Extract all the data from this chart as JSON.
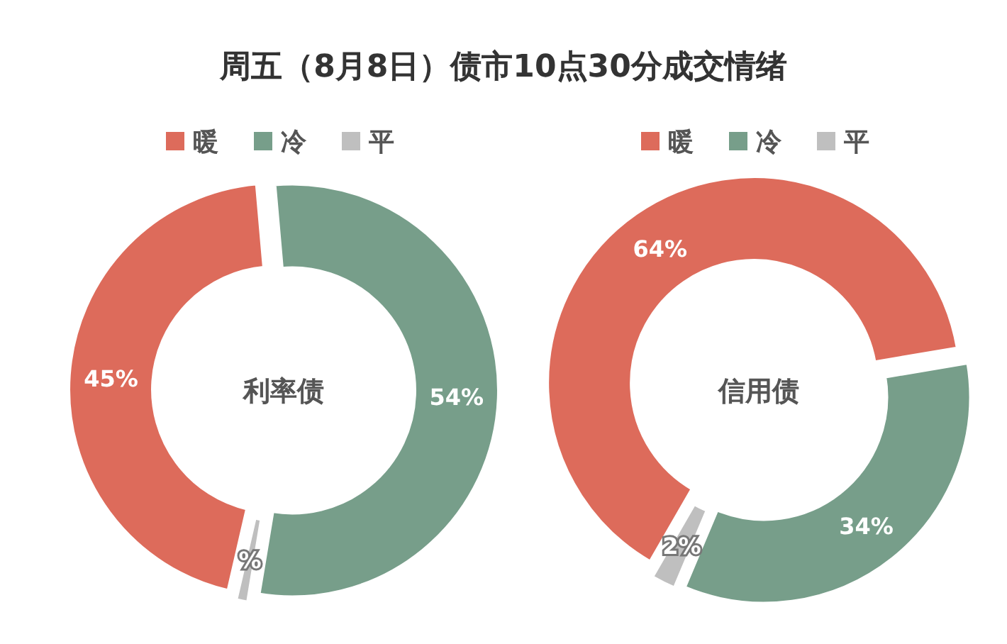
{
  "chart_data": [
    {
      "type": "donut",
      "title": "周五（8月8日）债市10点30分成交情绪",
      "subtitle": "利率债",
      "categories": [
        "暖",
        "冷",
        "平"
      ],
      "values": [
        45,
        54,
        1
      ],
      "value_labels": [
        "45%",
        "54%",
        "%"
      ],
      "colors": [
        "#dd6b5b",
        "#779e8a",
        "#bfbfbf"
      ],
      "legend": "top"
    },
    {
      "type": "donut",
      "subtitle": "信用债",
      "categories": [
        "暖",
        "冷",
        "平"
      ],
      "values": [
        64,
        34,
        2
      ],
      "value_labels": [
        "64%",
        "34%",
        "2%"
      ],
      "colors": [
        "#dd6b5b",
        "#779e8a",
        "#bfbfbf"
      ],
      "legend": "top"
    }
  ]
}
